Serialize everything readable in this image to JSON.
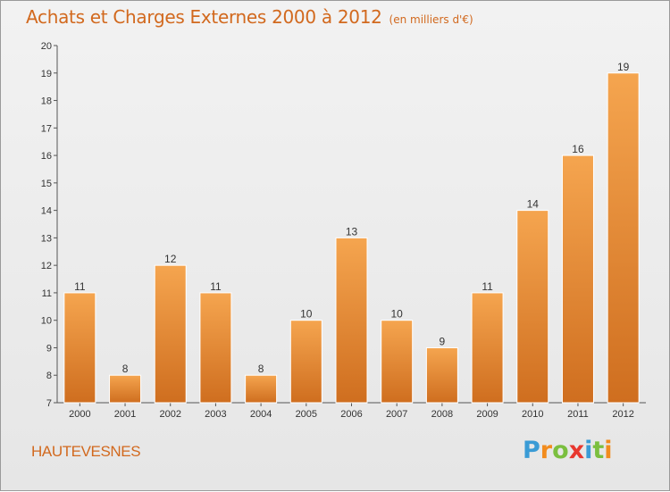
{
  "header": {
    "title": "Achats et Charges Externes 2000 à 2012",
    "subtitle": "(en milliers d'€)"
  },
  "footer": {
    "commune": "HAUTEVESNES",
    "logo_letters": [
      "P",
      "r",
      "o",
      "x",
      "i",
      "t",
      "i"
    ]
  },
  "colors": {
    "title": "#d2691e",
    "bar_light": "#f5a54f",
    "bar_dark": "#d07020",
    "logo": [
      "#3a9bd5",
      "#f28c1e",
      "#7bbf3f",
      "#e8382f",
      "#3a9bd5",
      "#7bbf3f",
      "#f28c1e"
    ]
  },
  "chart_data": {
    "type": "bar",
    "title": "Achats et Charges Externes 2000 à 2012",
    "subtitle": "(en milliers d'€)",
    "xlabel": "",
    "ylabel": "",
    "categories": [
      "2000",
      "2001",
      "2002",
      "2003",
      "2004",
      "2005",
      "2006",
      "2007",
      "2008",
      "2009",
      "2010",
      "2011",
      "2012"
    ],
    "values": [
      11,
      8,
      12,
      11,
      8,
      10,
      13,
      10,
      9,
      11,
      14,
      16,
      19
    ],
    "ylim": [
      7,
      20
    ],
    "yticks": [
      7,
      8,
      9,
      10,
      11,
      12,
      13,
      14,
      15,
      16,
      17,
      18,
      19,
      20
    ],
    "grid": false,
    "legend": "none"
  }
}
